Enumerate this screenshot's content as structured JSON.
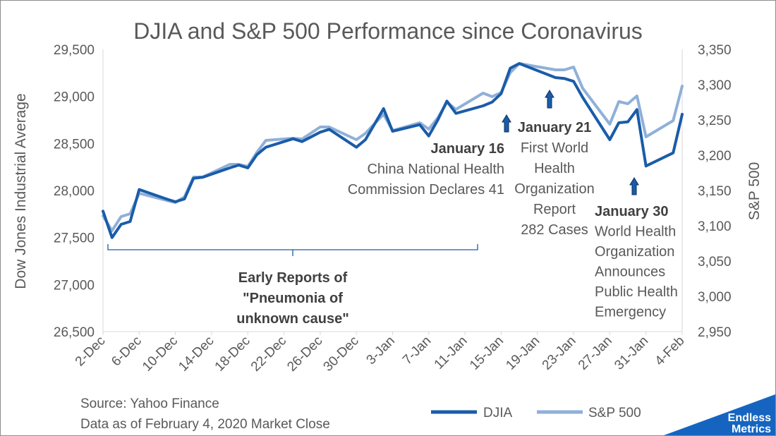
{
  "chart_data": {
    "type": "line",
    "title": "DJIA and S&P 500 Performance since Coronavirus",
    "ylabel_left": "Dow Jones Industrial Average",
    "ylabel_right": "S&P 500",
    "yleft_ticks": [
      "26,500",
      "27,000",
      "27,500",
      "28,000",
      "28,500",
      "29,000",
      "29,500"
    ],
    "yright_ticks": [
      "2,950",
      "3,000",
      "3,050",
      "3,100",
      "3,150",
      "3,200",
      "3,250",
      "3,300",
      "3,350"
    ],
    "ylim_left": [
      26500,
      29500
    ],
    "ylim_right": [
      2950,
      3350
    ],
    "xlim": [
      "2019-12-02",
      "2020-02-04"
    ],
    "x_ticks": [
      "2-Dec",
      "6-Dec",
      "10-Dec",
      "14-Dec",
      "18-Dec",
      "22-Dec",
      "26-Dec",
      "30-Dec",
      "3-Jan",
      "7-Jan",
      "11-Jan",
      "15-Jan",
      "19-Jan",
      "23-Jan",
      "27-Jan",
      "31-Jan",
      "4-Feb"
    ],
    "x_tick_dates": [
      "2019-12-02",
      "2019-12-06",
      "2019-12-10",
      "2019-12-14",
      "2019-12-18",
      "2019-12-22",
      "2019-12-26",
      "2019-12-30",
      "2020-01-03",
      "2020-01-07",
      "2020-01-11",
      "2020-01-15",
      "2020-01-19",
      "2020-01-23",
      "2020-01-27",
      "2020-01-31",
      "2020-02-04"
    ],
    "legend_position": "bottom",
    "grid": false,
    "series": [
      {
        "name": "DJIA",
        "axis": "left",
        "color": "#1a5ca8",
        "points": [
          [
            "2019-12-02",
            27780
          ],
          [
            "2019-12-03",
            27500
          ],
          [
            "2019-12-04",
            27640
          ],
          [
            "2019-12-05",
            27670
          ],
          [
            "2019-12-06",
            28010
          ],
          [
            "2019-12-09",
            27910
          ],
          [
            "2019-12-10",
            27880
          ],
          [
            "2019-12-11",
            27910
          ],
          [
            "2019-12-12",
            28130
          ],
          [
            "2019-12-13",
            28140
          ],
          [
            "2019-12-16",
            28240
          ],
          [
            "2019-12-17",
            28270
          ],
          [
            "2019-12-18",
            28240
          ],
          [
            "2019-12-19",
            28380
          ],
          [
            "2019-12-20",
            28460
          ],
          [
            "2019-12-23",
            28550
          ],
          [
            "2019-12-24",
            28520
          ],
          [
            "2019-12-26",
            28620
          ],
          [
            "2019-12-27",
            28650
          ],
          [
            "2019-12-30",
            28460
          ],
          [
            "2019-12-31",
            28540
          ],
          [
            "2020-01-02",
            28870
          ],
          [
            "2020-01-03",
            28630
          ],
          [
            "2020-01-06",
            28700
          ],
          [
            "2020-01-07",
            28580
          ],
          [
            "2020-01-08",
            28750
          ],
          [
            "2020-01-09",
            28950
          ],
          [
            "2020-01-10",
            28820
          ],
          [
            "2020-01-13",
            28900
          ],
          [
            "2020-01-14",
            28940
          ],
          [
            "2020-01-15",
            29030
          ],
          [
            "2020-01-16",
            29300
          ],
          [
            "2020-01-17",
            29350
          ],
          [
            "2020-01-21",
            29200
          ],
          [
            "2020-01-22",
            29190
          ],
          [
            "2020-01-23",
            29160
          ],
          [
            "2020-01-24",
            28990
          ],
          [
            "2020-01-27",
            28540
          ],
          [
            "2020-01-28",
            28720
          ],
          [
            "2020-01-29",
            28730
          ],
          [
            "2020-01-30",
            28860
          ],
          [
            "2020-01-31",
            28260
          ],
          [
            "2020-02-03",
            28400
          ],
          [
            "2020-02-04",
            28810
          ]
        ]
      },
      {
        "name": "S&P 500",
        "axis": "right",
        "color": "#8fb0d9",
        "points": [
          [
            "2019-12-02",
            3114
          ],
          [
            "2019-12-03",
            3093
          ],
          [
            "2019-12-04",
            3113
          ],
          [
            "2019-12-05",
            3117
          ],
          [
            "2019-12-06",
            3146
          ],
          [
            "2019-12-09",
            3136
          ],
          [
            "2019-12-10",
            3133
          ],
          [
            "2019-12-11",
            3141
          ],
          [
            "2019-12-12",
            3169
          ],
          [
            "2019-12-13",
            3169
          ],
          [
            "2019-12-16",
            3187
          ],
          [
            "2019-12-17",
            3187
          ],
          [
            "2019-12-18",
            3184
          ],
          [
            "2019-12-19",
            3204
          ],
          [
            "2019-12-20",
            3221
          ],
          [
            "2019-12-23",
            3224
          ],
          [
            "2019-12-24",
            3223
          ],
          [
            "2019-12-26",
            3240
          ],
          [
            "2019-12-27",
            3240
          ],
          [
            "2019-12-30",
            3222
          ],
          [
            "2019-12-31",
            3231
          ],
          [
            "2020-01-02",
            3258
          ],
          [
            "2020-01-03",
            3235
          ],
          [
            "2020-01-06",
            3246
          ],
          [
            "2020-01-07",
            3237
          ],
          [
            "2020-01-08",
            3253
          ],
          [
            "2020-01-09",
            3275
          ],
          [
            "2020-01-10",
            3265
          ],
          [
            "2020-01-13",
            3288
          ],
          [
            "2020-01-14",
            3283
          ],
          [
            "2020-01-15",
            3289
          ],
          [
            "2020-01-16",
            3317
          ],
          [
            "2020-01-17",
            3330
          ],
          [
            "2020-01-21",
            3321
          ],
          [
            "2020-01-22",
            3321
          ],
          [
            "2020-01-23",
            3325
          ],
          [
            "2020-01-24",
            3295
          ],
          [
            "2020-01-27",
            3244
          ],
          [
            "2020-01-28",
            3276
          ],
          [
            "2020-01-29",
            3273
          ],
          [
            "2020-01-30",
            3284
          ],
          [
            "2020-01-31",
            3226
          ],
          [
            "2020-02-03",
            3249
          ],
          [
            "2020-02-04",
            3298
          ]
        ]
      }
    ],
    "annotations": [
      {
        "id": "bracket",
        "lines": [
          "Early Reports of",
          "\"Pneumonia of",
          "unknown cause\""
        ],
        "bold": true
      },
      {
        "id": "jan16",
        "date": "2020-01-16",
        "lines": [
          "January 16",
          "China National Health",
          "Commission Declares 41"
        ]
      },
      {
        "id": "jan21",
        "date": "2020-01-21",
        "lines": [
          "January 21",
          "First World",
          "Health",
          "Organization",
          "Report",
          "282 Cases"
        ]
      },
      {
        "id": "jan30",
        "date": "2020-01-30",
        "lines": [
          "January 30",
          "World Health",
          "Organization",
          "Announces",
          "Public Health",
          "Emergency"
        ]
      }
    ]
  },
  "footer": {
    "source": "Source: Yahoo Finance",
    "asof": "Data as of February 4, 2020 Market Close"
  },
  "logo": {
    "line1": "Endless",
    "line2": "Metrics",
    "color": "#1565c0"
  },
  "colors": {
    "text": "#595959",
    "axis": "#d9d9d9",
    "annotation_bold": "#404040",
    "arrow": "#1a5ca8"
  }
}
